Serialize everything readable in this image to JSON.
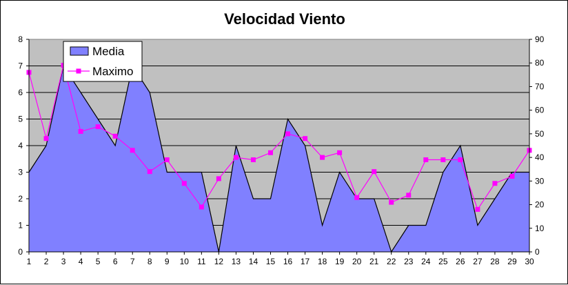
{
  "chart_data": {
    "type": "area",
    "title": "Velocidad Viento",
    "xlabel": "",
    "ylabel": "",
    "x": [
      1,
      2,
      3,
      4,
      5,
      6,
      7,
      8,
      9,
      10,
      11,
      12,
      13,
      14,
      15,
      16,
      17,
      18,
      19,
      20,
      21,
      22,
      23,
      24,
      25,
      26,
      27,
      28,
      29,
      30
    ],
    "series": [
      {
        "name": "Media",
        "kind": "area",
        "axis": "left",
        "color": "#8080FF",
        "values": [
          3,
          4,
          7,
          6,
          5,
          4,
          7,
          6,
          3,
          3,
          3,
          0,
          4,
          2,
          2,
          5,
          4,
          1,
          3,
          2,
          2,
          0,
          1,
          1,
          3,
          4,
          1,
          2,
          3,
          3
        ]
      },
      {
        "name": "Maximo",
        "kind": "line",
        "axis": "right",
        "color": "#FF00FF",
        "values": [
          76,
          48,
          79,
          51,
          53,
          49,
          43,
          34,
          39,
          29,
          19,
          31,
          40,
          39,
          42,
          50,
          48,
          40,
          42,
          23,
          34,
          21,
          24,
          39,
          39,
          39,
          18,
          29,
          32,
          43
        ]
      }
    ],
    "ylim_left": [
      0,
      8
    ],
    "yticks_left": [
      0,
      1,
      2,
      3,
      4,
      5,
      6,
      7,
      8
    ],
    "ylim_right": [
      0,
      90
    ],
    "yticks_right": [
      0,
      10,
      20,
      30,
      40,
      50,
      60,
      70,
      80,
      90
    ],
    "grid": true,
    "plot_background": "#C0C0C0",
    "legend_position": "top-left"
  }
}
